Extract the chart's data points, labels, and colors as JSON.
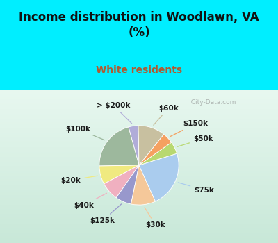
{
  "title": "Income distribution in Woodlawn, VA\n(%)",
  "subtitle": "White residents",
  "title_color": "#111111",
  "subtitle_color": "#b05a30",
  "bg_color_top": "#00eeff",
  "bg_color_chart_top": "#ffffff",
  "bg_color_chart_bot": "#b8dfc0",
  "watermark": "  City-Data.com",
  "labels": [
    "> $200k",
    "$100k",
    "$20k",
    "$40k",
    "$125k",
    "$30k",
    "$75k",
    "$50k",
    "$150k",
    "$60k"
  ],
  "sizes": [
    4.0,
    21.0,
    7.5,
    7.5,
    6.5,
    10.0,
    23.0,
    5.0,
    4.5,
    11.0
  ],
  "colors": [
    "#b0acd8",
    "#9db89d",
    "#f0ea80",
    "#f0b0c0",
    "#9898cc",
    "#f5c89a",
    "#aaccee",
    "#b8d870",
    "#f5a060",
    "#c8c0a0"
  ],
  "label_fontsize": 7.5,
  "startangle": 91
}
